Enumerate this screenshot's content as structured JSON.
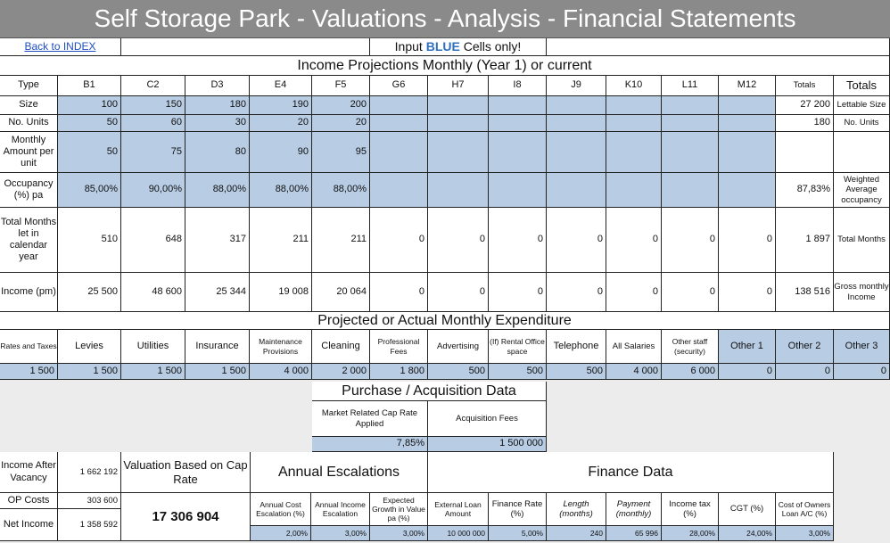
{
  "header": {
    "title": "Self Storage Park - Valuations - Analysis - Financial Statements",
    "back_link": "Back to INDEX",
    "input_prefix": "Input",
    "input_blue": "BLUE",
    "input_suffix": "Cells only!"
  },
  "income": {
    "section_title": "Income Projections Monthly (Year 1) or current",
    "columns": [
      "B1",
      "C2",
      "D3",
      "E4",
      "F5",
      "G6",
      "H7",
      "I8",
      "J9",
      "K10",
      "L11",
      "M12"
    ],
    "totals_header_small": "Totals",
    "totals_header": "Totals",
    "rows": [
      {
        "label": "Type"
      },
      {
        "label": "Size",
        "values": [
          "100",
          "150",
          "180",
          "190",
          "200",
          "",
          "",
          "",
          "",
          "",
          "",
          ""
        ],
        "total": "27 200",
        "desc": "Lettable Size"
      },
      {
        "label": "No. Units",
        "values": [
          "50",
          "60",
          "30",
          "20",
          "20",
          "",
          "",
          "",
          "",
          "",
          "",
          ""
        ],
        "total": "180",
        "desc": "No. Units"
      },
      {
        "label": "Monthly Amount per unit",
        "values": [
          "50",
          "75",
          "80",
          "90",
          "95",
          "",
          "",
          "",
          "",
          "",
          "",
          ""
        ],
        "total": "",
        "desc": ""
      },
      {
        "label": "Occupancy (%) pa",
        "values": [
          "85,00%",
          "90,00%",
          "88,00%",
          "88,00%",
          "88,00%",
          "",
          "",
          "",
          "",
          "",
          "",
          ""
        ],
        "total": "87,83%",
        "desc": "Weighted Average occupancy"
      },
      {
        "label": "Total Months let in calendar year",
        "values": [
          "510",
          "648",
          "317",
          "211",
          "211",
          "0",
          "0",
          "0",
          "0",
          "0",
          "0",
          "0"
        ],
        "total": "1 897",
        "desc": "Total Months"
      },
      {
        "label": "Income (pm)",
        "values": [
          "25 500",
          "48 600",
          "25 344",
          "19 008",
          "20 064",
          "0",
          "0",
          "0",
          "0",
          "0",
          "0",
          "0"
        ],
        "total": "138 516",
        "desc": "Gross monthly Income"
      }
    ]
  },
  "expenditure": {
    "section_title": "Projected or Actual Monthly Expenditure",
    "labels": [
      "Rates and Taxes",
      "Levies",
      "Utilities",
      "Insurance",
      "Maintenance Provisions",
      "Cleaning",
      "Professional Fees",
      "Advertising",
      "(If) Rental Office space",
      "Telephone",
      "All Salaries",
      "Other staff (security)",
      "Other 1",
      "Other 2",
      "Other 3"
    ],
    "values": [
      "1 500",
      "1 500",
      "1 500",
      "1 500",
      "4 000",
      "2 000",
      "1 800",
      "500",
      "500",
      "500",
      "4 000",
      "6 000",
      "0",
      "0",
      "0"
    ]
  },
  "purchase": {
    "title": "Purchase / Acquisition Data",
    "cap_rate_label": "Market Related Cap Rate Applied",
    "acq_fees_label": "Acquisition Fees",
    "cap_rate": "7,85%",
    "acq_fees": "1 500 000"
  },
  "summary": {
    "income_after_vacancy_label": "Income After Vacancy",
    "income_after_vacancy": "1 662 192",
    "op_costs_label": "OP Costs",
    "op_costs": "303 600",
    "net_income_label": "Net Income",
    "net_income": "1 358 592",
    "valuation_label": "Valuation Based on Cap Rate",
    "valuation": "17 306 904"
  },
  "escalations": {
    "title": "Annual Escalations",
    "labels": [
      "Annual Cost Escalation (%)",
      "Annual Income Escalation",
      "Expected Growth in Value pa (%)"
    ],
    "values": [
      "2,00%",
      "3,00%",
      "3,00%"
    ]
  },
  "finance": {
    "title": "Finance Data",
    "labels": [
      "External Loan Amount",
      "Finance Rate (%)",
      "Length (months)",
      "Payment (monthly)",
      "Income tax (%)",
      "CGT (%)",
      "Cost of Owners Loan A/C (%)"
    ],
    "values": [
      "10 000 000",
      "5,00%",
      "240",
      "65 996",
      "28,00%",
      "24,00%",
      "3,00%"
    ]
  },
  "colors": {
    "input_blue": "#b8cce4",
    "title_bar": "#8a8a8a"
  }
}
